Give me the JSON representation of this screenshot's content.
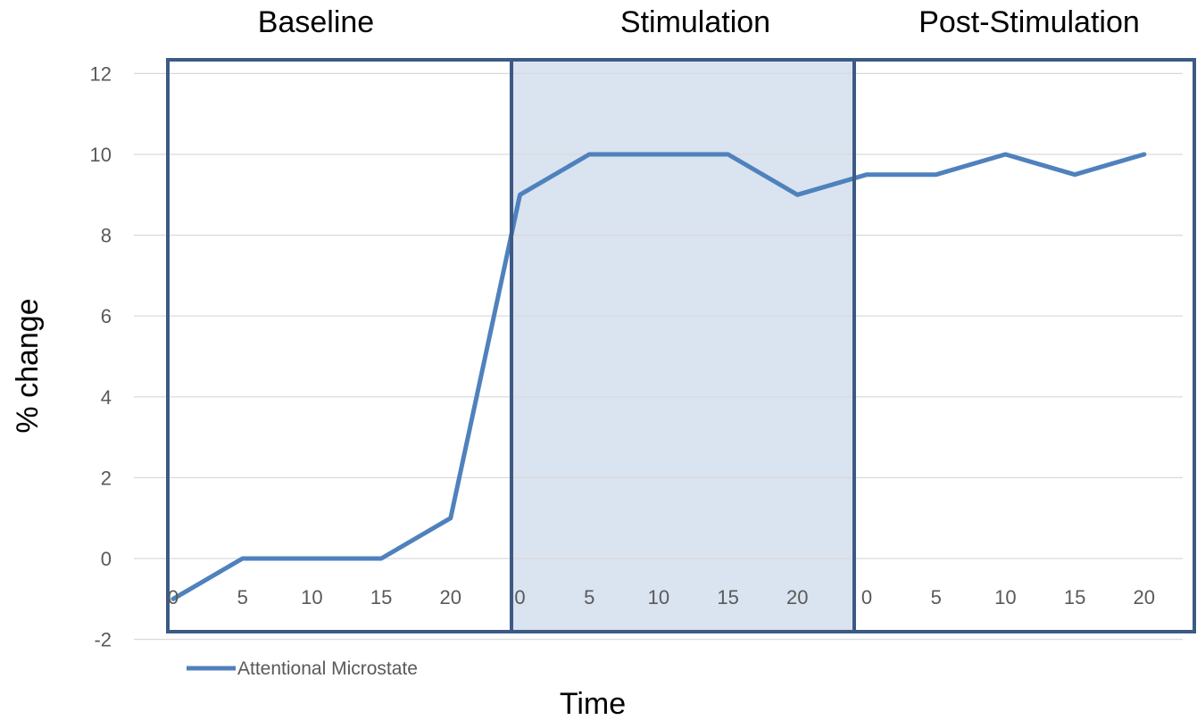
{
  "chart_data": {
    "type": "line",
    "title": "",
    "xlabel": "Time",
    "ylabel": "% change",
    "ylim": [
      -2,
      12
    ],
    "y_ticks": [
      -2,
      0,
      2,
      4,
      6,
      8,
      10,
      12
    ],
    "grid": true,
    "legend_position": "bottom-left",
    "phases": [
      {
        "label": "Baseline",
        "x_labels": [
          "0",
          "5",
          "10",
          "15",
          "20"
        ],
        "highlighted": false
      },
      {
        "label": "Stimulation",
        "x_labels": [
          "0",
          "5",
          "10",
          "15",
          "20"
        ],
        "highlighted": true
      },
      {
        "label": "Post-Stimulation",
        "x_labels": [
          "0",
          "5",
          "10",
          "15",
          "20"
        ],
        "highlighted": false
      }
    ],
    "series": [
      {
        "name": "Attentional Microstate",
        "color": "#4f81bd",
        "values": [
          -1,
          0,
          0,
          0,
          1,
          9,
          10,
          10,
          10,
          9,
          9.5,
          9.5,
          10,
          9.5,
          10
        ]
      }
    ],
    "colors": {
      "phase_border": "#3b5a85",
      "stimulation_fill": "#dae3f0",
      "gridline": "#d9d9d9"
    }
  }
}
